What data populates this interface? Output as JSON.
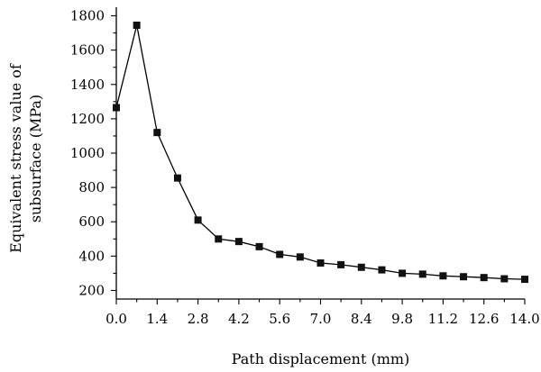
{
  "chart_data": {
    "type": "line",
    "title": "",
    "xlabel": "Path displacement (mm)",
    "ylabel_lines": [
      "Equivalent stress value of",
      "subsurface (MPa)"
    ],
    "xlim": [
      0.0,
      14.0
    ],
    "ylim": [
      150,
      1850
    ],
    "x_ticks": [
      0.0,
      1.4,
      2.8,
      4.2,
      5.6,
      7.0,
      8.4,
      9.8,
      11.2,
      12.6,
      14.0
    ],
    "x_tick_labels": [
      "0.0",
      "1.4",
      "2.8",
      "4.2",
      "5.6",
      "7.0",
      "8.4",
      "9.8",
      "11.2",
      "12.6",
      "14.0"
    ],
    "y_ticks": [
      200,
      400,
      600,
      800,
      1000,
      1200,
      1400,
      1600,
      1800
    ],
    "y_tick_labels": [
      "200",
      "400",
      "600",
      "800",
      "1000",
      "1200",
      "1400",
      "1600",
      "1800"
    ],
    "grid": false,
    "legend": "none",
    "series": [
      {
        "marker": "square",
        "color": "#111111",
        "x": [
          0.0,
          0.7,
          1.4,
          2.1,
          2.8,
          3.5,
          4.2,
          4.9,
          5.6,
          6.3,
          7.0,
          7.7,
          8.4,
          9.1,
          9.8,
          10.5,
          11.2,
          11.9,
          12.6,
          13.3,
          14.0
        ],
        "y": [
          1265,
          1745,
          1120,
          855,
          610,
          500,
          485,
          455,
          410,
          395,
          360,
          350,
          335,
          320,
          300,
          295,
          285,
          280,
          275,
          268,
          265
        ]
      }
    ]
  }
}
